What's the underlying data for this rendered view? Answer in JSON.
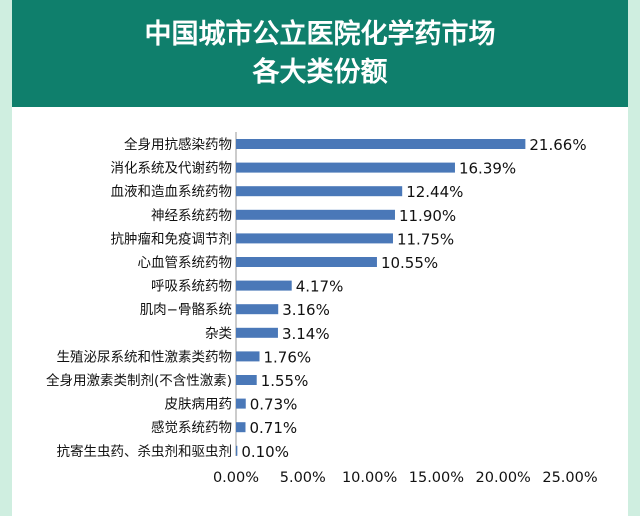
{
  "chart_data": {
    "type": "bar",
    "orientation": "horizontal",
    "title_lines": [
      "中国城市公立医院化学药市场",
      "各大类份额"
    ],
    "categories": [
      "全身用抗感染药物",
      "消化系统及代谢药物",
      "血液和造血系统药物",
      "神经系统药物",
      "抗肿瘤和免疫调节剂",
      "心血管系统药物",
      "呼吸系统药物",
      "肌肉−骨骼系统",
      "杂类",
      "生殖泌尿系统和性激素类药物",
      "全身用激素类制剂(不含性激素)",
      "皮肤病用药",
      "感觉系统药物",
      "抗寄生虫药、杀虫剂和驱虫剂"
    ],
    "values": [
      21.66,
      16.39,
      12.44,
      11.9,
      11.75,
      10.55,
      4.17,
      3.16,
      3.14,
      1.76,
      1.55,
      0.73,
      0.71,
      0.1
    ],
    "value_labels": [
      "21.66%",
      "16.39%",
      "12.44%",
      "11.90%",
      "11.75%",
      "10.55%",
      "4.17%",
      "3.16%",
      "3.14%",
      "1.76%",
      "1.55%",
      "0.73%",
      "0.71%",
      "0.10%"
    ],
    "xlim": [
      0,
      25
    ],
    "x_ticks": [
      0,
      5,
      10,
      15,
      20,
      25
    ],
    "x_tick_labels": [
      "0.00%",
      "5.00%",
      "10.00%",
      "15.00%",
      "20.00%",
      "25.00%"
    ],
    "bar_color": "#4a78b8",
    "header_color": "#0f7f6c",
    "grid": false,
    "legend": "none"
  }
}
